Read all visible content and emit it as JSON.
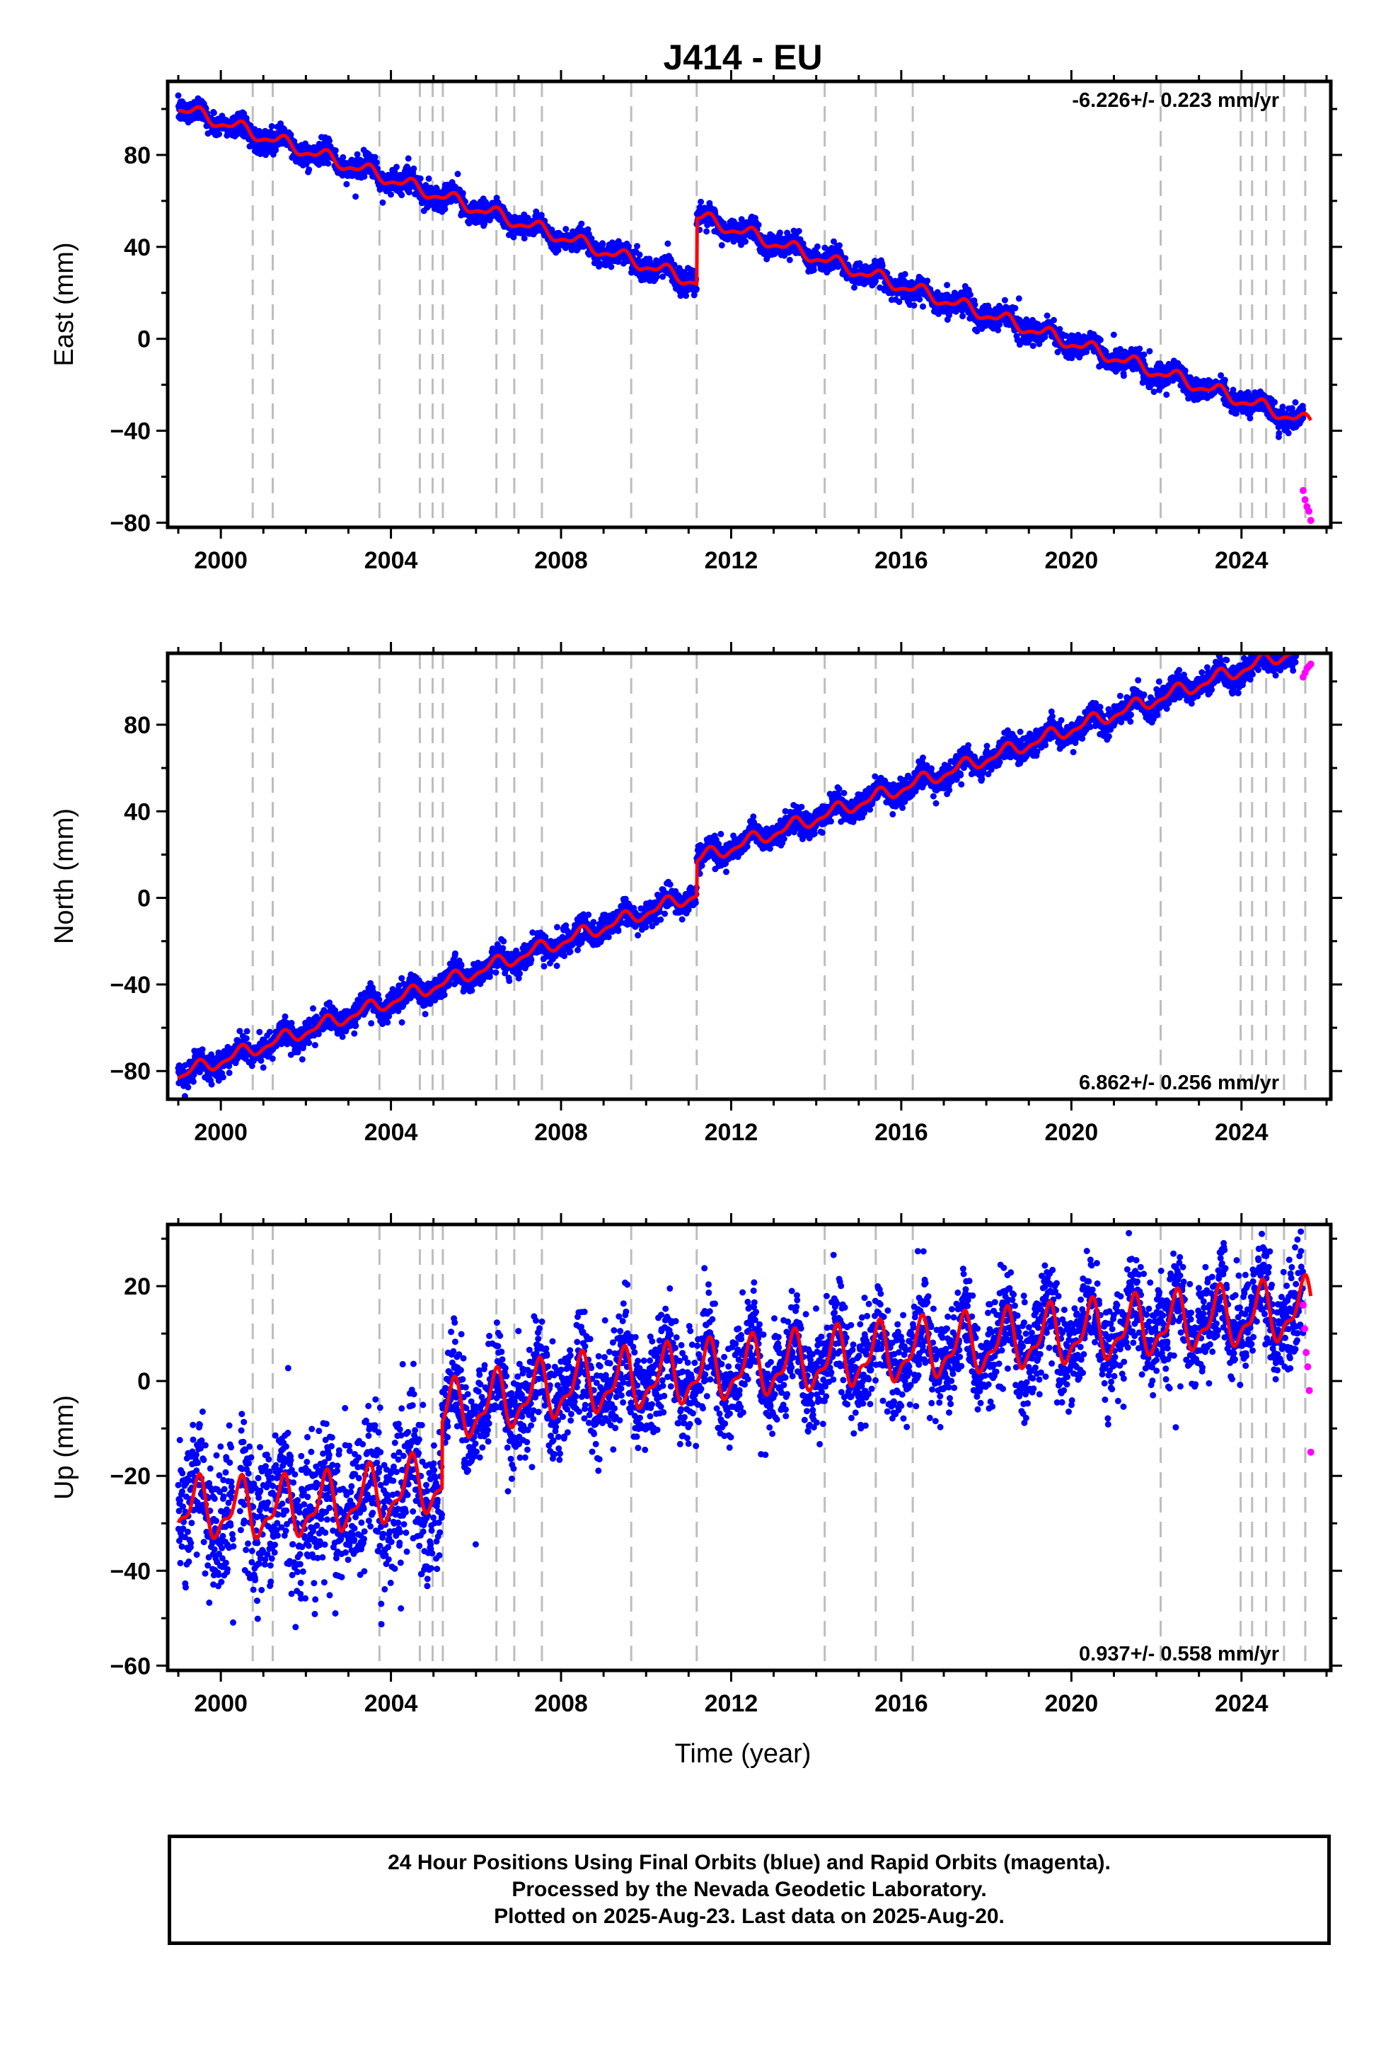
{
  "title": "J414 - EU",
  "colors": {
    "final_orbits": "#0000ff",
    "rapid_orbits": "#ff00ff",
    "model_fit": "#ff0000",
    "event_lines": "#bdbdbd"
  },
  "chart_data": [
    {
      "type": "scatter",
      "panel": "East",
      "title": "J414 - EU",
      "xlabel": "",
      "ylabel": "East (mm)",
      "xlim": [
        1998.75,
        2026.1
      ],
      "ylim": [
        -82,
        112
      ],
      "x_ticks": [
        2000,
        2004,
        2008,
        2012,
        2016,
        2020,
        2024
      ],
      "y_ticks": [
        -80,
        -40,
        0,
        40,
        80
      ],
      "rate_label": "-6.226+/- 0.223 mm/yr",
      "rate_mm_per_yr": -6.226,
      "rate_uncertainty_mm_per_yr": 0.223,
      "offset_epochs": [
        2011.19
      ],
      "offset_sizes_mm": [
        28.5
      ],
      "start_value_mm": 100.5,
      "seasonal_amplitude_mm": 2.5,
      "daily_scatter_mm": 2.4,
      "data_span": [
        1999.0,
        2025.63
      ],
      "rapid_span": [
        2025.45,
        2025.63
      ],
      "rapid_values_mm": [
        -66,
        -70,
        -73,
        -75,
        -79
      ],
      "series": [
        {
          "name": "Final Orbits",
          "color": "#0000ff"
        },
        {
          "name": "Rapid Orbits",
          "color": "#ff00ff"
        }
      ]
    },
    {
      "type": "scatter",
      "panel": "North",
      "xlabel": "",
      "ylabel": "North (mm)",
      "xlim": [
        1998.75,
        2026.1
      ],
      "ylim": [
        -93,
        113
      ],
      "x_ticks": [
        2000,
        2004,
        2008,
        2012,
        2016,
        2020,
        2024
      ],
      "y_ticks": [
        -80,
        -40,
        0,
        40,
        80
      ],
      "rate_label": "6.862+/- 0.256 mm/yr",
      "rate_mm_per_yr": 6.862,
      "rate_uncertainty_mm_per_yr": 0.256,
      "offset_epochs": [
        2011.19
      ],
      "offset_sizes_mm": [
        16
      ],
      "start_value_mm": -82,
      "seasonal_amplitude_mm": 2.8,
      "daily_scatter_mm": 2.8,
      "data_span": [
        1999.0,
        2025.63
      ],
      "rapid_span": [
        2025.45,
        2025.63
      ],
      "rapid_values_mm": [
        102,
        104,
        106,
        107,
        108
      ],
      "series": [
        {
          "name": "Final Orbits",
          "color": "#0000ff"
        },
        {
          "name": "Rapid Orbits",
          "color": "#ff00ff"
        }
      ]
    },
    {
      "type": "scatter",
      "panel": "Up",
      "xlabel": "Time (year)",
      "ylabel": "Up (mm)",
      "xlim": [
        1998.75,
        2026.1
      ],
      "ylim": [
        -61,
        33
      ],
      "x_ticks": [
        2000,
        2004,
        2008,
        2012,
        2016,
        2020,
        2024
      ],
      "y_ticks": [
        -60,
        -40,
        -20,
        0,
        20
      ],
      "rate_label": "0.937+/- 0.558 mm/yr",
      "rate_mm_per_yr": 0.937,
      "rate_uncertainty_mm_per_yr": 0.558,
      "offset_epochs": [
        2005.2
      ],
      "offset_sizes_mm": [
        17
      ],
      "start_value_mm": -27,
      "seasonal_amplitude_mm": 5.5,
      "daily_scatter_mm": 5.2,
      "data_span": [
        1999.0,
        2025.63
      ],
      "rapid_span": [
        2025.45,
        2025.63
      ],
      "rapid_values_mm": [
        16,
        11,
        6,
        3,
        -2,
        -15
      ],
      "series": [
        {
          "name": "Final Orbits",
          "color": "#0000ff"
        },
        {
          "name": "Rapid Orbits",
          "color": "#ff00ff"
        }
      ]
    }
  ],
  "event_epochs": [
    2000.75,
    2001.22,
    2003.73,
    2004.68,
    2004.98,
    2005.22,
    2006.48,
    2006.9,
    2007.55,
    2009.65,
    2011.19,
    2014.2,
    2015.4,
    2016.27,
    2022.1,
    2023.98,
    2024.25,
    2024.58,
    2025.0,
    2025.5
  ],
  "footer": {
    "line1": "24 Hour Positions Using Final Orbits (blue) and Rapid Orbits (magenta).",
    "line2": "Processed by the Nevada Geodetic Laboratory.",
    "line3": "Plotted on 2025-Aug-23. Last data on 2025-Aug-20."
  }
}
